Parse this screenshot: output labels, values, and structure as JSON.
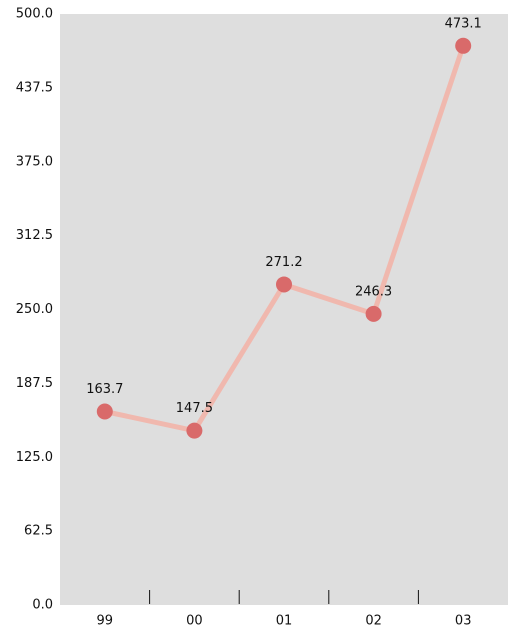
{
  "chart_data": {
    "type": "line",
    "categories": [
      "99",
      "00",
      "01",
      "02",
      "03"
    ],
    "series": [
      {
        "values": [
          163.7,
          147.5,
          271.2,
          246.3,
          473.1
        ],
        "color": "#f0b8ae",
        "marker_color": "#d96a6a"
      }
    ],
    "ylim": [
      0,
      500
    ],
    "yticks": [
      {
        "value": 0,
        "label": "0.0"
      },
      62.5,
      {
        "value": 125,
        "label": "125.0"
      },
      187.5,
      {
        "value": 250,
        "label": "250.0"
      },
      312.5,
      {
        "value": 375,
        "label": "375.0"
      },
      437.5,
      {
        "value": 500,
        "label": "500.0"
      }
    ],
    "grid": false,
    "background": "#dedede"
  }
}
